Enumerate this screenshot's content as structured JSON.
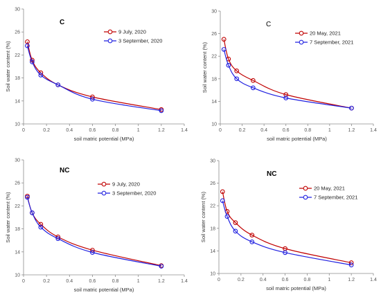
{
  "chart_data": [
    {
      "type": "line",
      "panel": "C",
      "panel_label_bold": true,
      "xlabel": "soil matric potential (MPa)",
      "ylabel": "Soil water content (%)",
      "xlim": [
        0,
        1.4
      ],
      "ylim": [
        10,
        30
      ],
      "xticks": [
        "0",
        "0.2",
        "0.4",
        "0.6",
        "0.8",
        "1",
        "1.2",
        "1.4"
      ],
      "yticks": [
        "10",
        "14",
        "18",
        "22",
        "26",
        "30"
      ],
      "grid": false,
      "legend_position": "top-right",
      "series": [
        {
          "name": "9 July, 2020",
          "color": "#c00000",
          "x": [
            0.033,
            0.075,
            0.15,
            0.3,
            0.6,
            1.2
          ],
          "y": [
            24.3,
            21.1,
            18.9,
            16.8,
            14.7,
            12.5
          ]
        },
        {
          "name": "3 September, 2020",
          "color": "#1f1fe0",
          "x": [
            0.033,
            0.075,
            0.15,
            0.3,
            0.6,
            1.2
          ],
          "y": [
            23.6,
            20.8,
            18.5,
            16.8,
            14.3,
            12.3
          ]
        }
      ]
    },
    {
      "type": "line",
      "panel": "C",
      "panel_label_bold": false,
      "xlabel": "soil matric potential (MPa)",
      "ylabel": "Soil water content (%)",
      "xlim": [
        0,
        1.4
      ],
      "ylim": [
        10,
        30
      ],
      "xticks": [
        "0",
        "0.2",
        "0.4",
        "0.6",
        "0.8",
        "1",
        "1.2",
        "1.4"
      ],
      "yticks": [
        "10",
        "14",
        "18",
        "22",
        "26",
        "30"
      ],
      "grid": false,
      "legend_position": "top-right",
      "series": [
        {
          "name": "20 May, 2021",
          "color": "#c00000",
          "x": [
            0.033,
            0.075,
            0.15,
            0.3,
            0.6,
            1.2
          ],
          "y": [
            25.0,
            21.5,
            19.4,
            17.7,
            15.2,
            12.8
          ]
        },
        {
          "name": "7 September, 2021",
          "color": "#1f1fe0",
          "x": [
            0.033,
            0.075,
            0.15,
            0.3,
            0.6,
            1.2
          ],
          "y": [
            23.2,
            20.4,
            18.0,
            16.4,
            14.6,
            12.8
          ]
        }
      ]
    },
    {
      "type": "line",
      "panel": "NC",
      "panel_label_bold": true,
      "xlabel": "soil matric potential (MPa)",
      "ylabel": "Soil water content (%)",
      "xlim": [
        0,
        1.4
      ],
      "ylim": [
        10,
        30
      ],
      "xticks": [
        "0",
        "0.2",
        "0.4",
        "0.6",
        "0.8",
        "1",
        "1.2",
        "1.4"
      ],
      "yticks": [
        "10",
        "14",
        "18",
        "22",
        "26",
        "30"
      ],
      "grid": false,
      "legend_position": "top-right",
      "series": [
        {
          "name": "9 July, 2020",
          "color": "#c00000",
          "x": [
            0.033,
            0.075,
            0.15,
            0.3,
            0.6,
            1.2
          ],
          "y": [
            23.7,
            20.8,
            18.8,
            16.6,
            14.3,
            11.6
          ]
        },
        {
          "name": "3 September, 2020",
          "color": "#1f1fe0",
          "x": [
            0.033,
            0.075,
            0.15,
            0.3,
            0.6,
            1.2
          ],
          "y": [
            23.5,
            20.8,
            18.3,
            16.3,
            13.9,
            11.5
          ]
        }
      ]
    },
    {
      "type": "line",
      "panel": "NC",
      "panel_label_bold": true,
      "xlabel": "soil matric potential (MPa)",
      "ylabel": "Soil water content (%)",
      "xlim": [
        0,
        1.4
      ],
      "ylim": [
        10,
        30
      ],
      "xticks": [
        "0",
        "0.2",
        "0.4",
        "0.6",
        "0.8",
        "1",
        "1.2",
        "1.4"
      ],
      "yticks": [
        "10",
        "14",
        "18",
        "22",
        "26",
        "30"
      ],
      "grid": false,
      "legend_position": "top-right",
      "series": [
        {
          "name": "20 May, 2021",
          "color": "#c00000",
          "x": [
            0.033,
            0.075,
            0.15,
            0.3,
            0.6,
            1.2
          ],
          "y": [
            24.5,
            21.0,
            19.0,
            16.8,
            14.4,
            11.9
          ]
        },
        {
          "name": "7 September, 2021",
          "color": "#1f1fe0",
          "x": [
            0.033,
            0.075,
            0.15,
            0.3,
            0.6,
            1.2
          ],
          "y": [
            22.9,
            20.1,
            17.5,
            15.6,
            13.7,
            11.5
          ]
        }
      ]
    }
  ]
}
